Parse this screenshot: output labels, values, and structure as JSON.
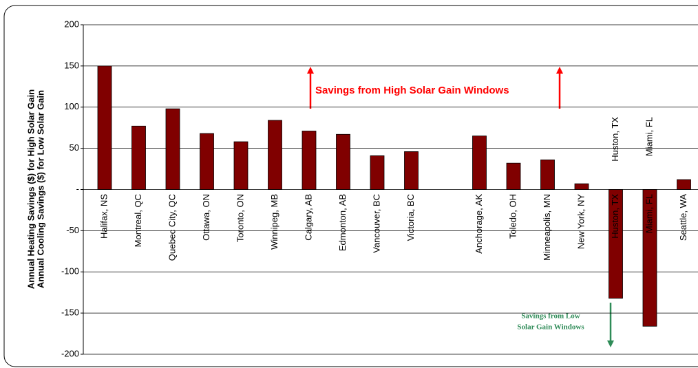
{
  "chart_data": {
    "type": "bar",
    "y_label": [
      "Annual Heating Savings ($) for High Solar Gain",
      "Annual Cooling Savings ($) for Low Solar Gain"
    ],
    "categories": [
      "Halifax, NS",
      "Montreal, QC",
      "Quebec City, QC",
      "Ottawa, ON",
      "Toronto, ON",
      "Winnipeg, MB",
      "Calgary, AB",
      "Edmonton, AB",
      "Vancouver, BC",
      "Victoria, BC",
      null,
      "Anchorage, AK",
      "Toledo, OH",
      "Minneapolis, MN",
      "New York, NY",
      "Huston, TX",
      "Miami, FL",
      "Seattle, WA"
    ],
    "values": [
      150,
      77,
      98,
      68,
      58,
      84,
      71,
      67,
      41,
      46,
      null,
      65,
      32,
      36,
      7,
      -132,
      -166,
      12
    ],
    "color": "#800000",
    "ylim": [
      -200,
      200
    ],
    "yticks": [
      -200,
      -150,
      -100,
      -50,
      {
        "value": 0,
        "label": "-"
      },
      50,
      100,
      150,
      200
    ],
    "grid": true,
    "annotation_high": "Savings from High Solar Gain Windows",
    "annotation_low": [
      "Savings from Low",
      "Solar Gain Windows"
    ]
  }
}
